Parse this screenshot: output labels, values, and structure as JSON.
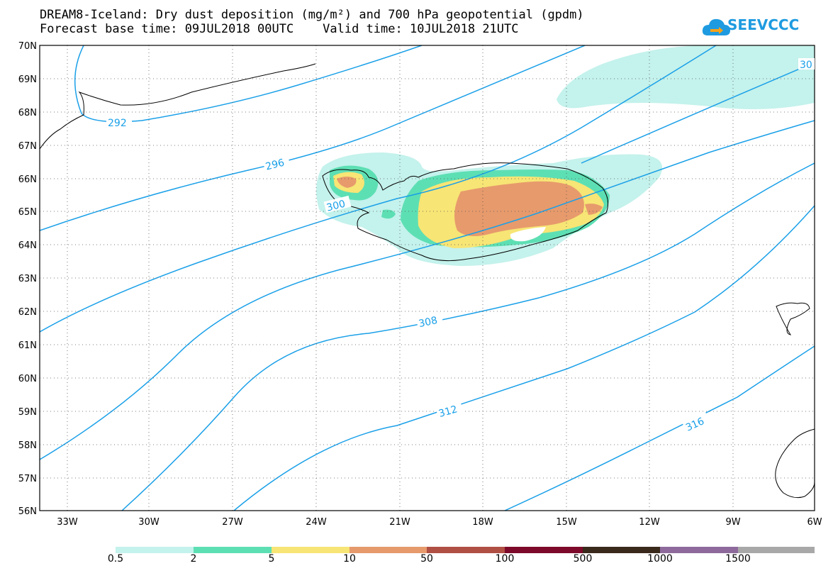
{
  "title": {
    "line1": "DREAM8-Iceland: Dry dust deposition (mg/m²) and 700 hPa geopotential (gpdm)",
    "line2": "Forecast base time: 09JUL2018 00UTC    Valid time: 10JUL2018 21UTC"
  },
  "logo": {
    "text": "SEEVCCC",
    "color": "#1e9be0"
  },
  "map": {
    "lat_labels": [
      "70N",
      "69N",
      "68N",
      "67N",
      "66N",
      "65N",
      "64N",
      "63N",
      "62N",
      "61N",
      "60N",
      "59N",
      "58N",
      "57N",
      "56N"
    ],
    "lon_labels": [
      "33W",
      "30W",
      "27W",
      "24W",
      "21W",
      "18W",
      "15W",
      "12W",
      "9W",
      "6W"
    ],
    "contour_labels": [
      "292",
      "296",
      "300",
      "308",
      "312",
      "316",
      "30"
    ],
    "contour_color": "#1aa0e8",
    "coast_color": "#000000"
  },
  "colorbar": {
    "labels": [
      "0.5",
      "2",
      "5",
      "10",
      "50",
      "100",
      "500",
      "1000",
      "1500"
    ],
    "colors": [
      "#c4f2ec",
      "#5ddfb4",
      "#f7e575",
      "#e79a6c",
      "#b04f43",
      "#7d0a2a",
      "#3a2a1c",
      "#8e6a9c",
      "#a8a8a8"
    ]
  }
}
